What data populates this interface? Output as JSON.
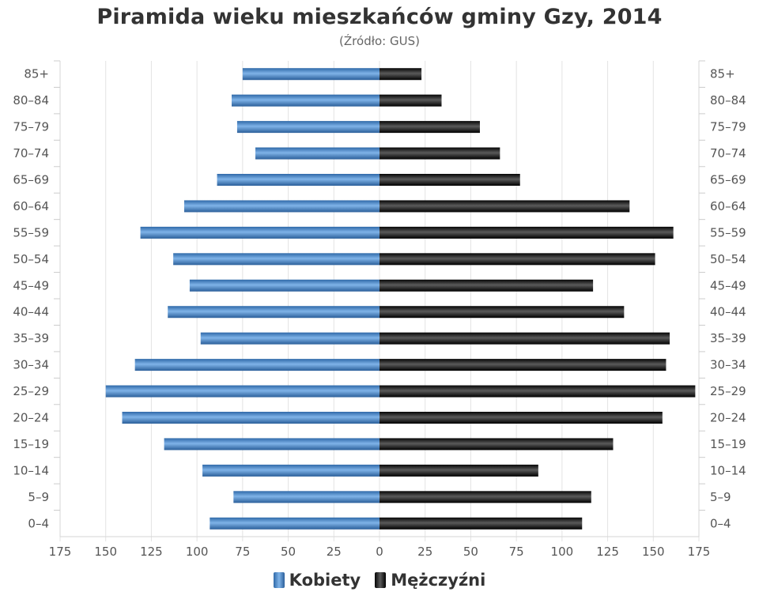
{
  "chart_data": {
    "type": "bar",
    "orientation": "horizontal-population-pyramid",
    "title": "Piramida wieku mieszkańców gminy Gzy, 2014",
    "subtitle": "(Źródło: GUS)",
    "categories": [
      "0–4",
      "5–9",
      "10–14",
      "15–19",
      "20–24",
      "25–29",
      "30–34",
      "35–39",
      "40–44",
      "45–49",
      "50–54",
      "55–59",
      "60–64",
      "65–69",
      "70–74",
      "75–79",
      "80–84",
      "85+"
    ],
    "series": [
      {
        "name": "Kobiety",
        "side": "left",
        "color": "#4a86c8",
        "values": [
          93,
          80,
          97,
          118,
          141,
          150,
          134,
          98,
          116,
          104,
          113,
          131,
          107,
          89,
          68,
          78,
          81,
          75
        ]
      },
      {
        "name": "Mężczyźni",
        "side": "right",
        "color": "#1a1a1a",
        "values": [
          111,
          116,
          87,
          128,
          155,
          173,
          157,
          159,
          134,
          117,
          151,
          161,
          137,
          77,
          66,
          55,
          34,
          23
        ]
      }
    ],
    "xticks": [
      175,
      150,
      125,
      100,
      75,
      50,
      25,
      0,
      25,
      50,
      75,
      100,
      125,
      150,
      175
    ],
    "xlim": [
      -175,
      175
    ],
    "grid": true,
    "legend": "bottom-center"
  }
}
